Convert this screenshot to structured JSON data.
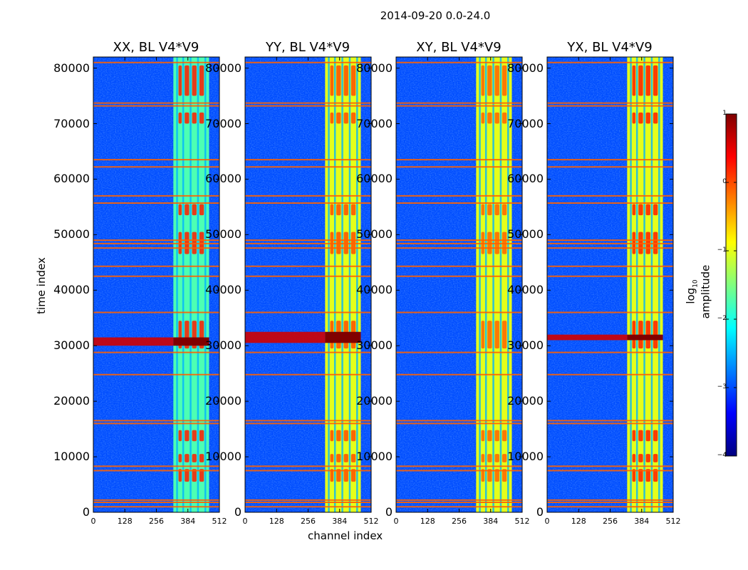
{
  "chart_data": {
    "type": "heatmap",
    "suptitle": "2014-09-20 0.0-24.0",
    "colormap": "jet",
    "colorbar": {
      "label_prefix": "log",
      "label_sub": "10",
      "label_suffix": " amplitude",
      "min": -4,
      "max": 1,
      "ticks": [
        1,
        0,
        -1,
        -2,
        -3,
        -4
      ],
      "tick_labels": [
        "1",
        "0",
        "−1",
        "−2",
        "−3",
        "−4"
      ]
    },
    "xlabel": "channel index",
    "ylabel": "time index",
    "xlim": [
      0,
      512
    ],
    "ylim": [
      0,
      82000
    ],
    "xticks": [
      0,
      128,
      256,
      384,
      512
    ],
    "xtick_labels": [
      "0",
      "128",
      "256",
      "384",
      "512"
    ],
    "yticks": [
      0,
      10000,
      20000,
      30000,
      40000,
      50000,
      60000,
      70000,
      80000
    ],
    "ytick_labels": [
      "0",
      "10000",
      "20000",
      "30000",
      "40000",
      "50000",
      "60000",
      "70000",
      "80000"
    ],
    "panels": [
      {
        "title": "XX, BL V4*V9",
        "band_level": 0.45,
        "hot_level": 0.85,
        "bright_stripe": [
          30000,
          31500
        ]
      },
      {
        "title": "YY, BL V4*V9",
        "band_level": 0.6,
        "hot_level": 0.8,
        "bright_stripe": [
          30500,
          32500
        ]
      },
      {
        "title": "XY, BL V4*V9",
        "band_level": 0.6,
        "hot_level": 0.78,
        "bright_stripe": null
      },
      {
        "title": "YX, BL V4*V9",
        "band_level": 0.6,
        "hot_level": 0.85,
        "bright_stripe": [
          31000,
          32000
        ]
      }
    ],
    "features": {
      "band_channels": [
        325,
        470
      ],
      "sub_band_edges": [
        340,
        365,
        395,
        425,
        455
      ],
      "orange_time_lines": [
        1000,
        1800,
        2200,
        7500,
        8300,
        16000,
        16500,
        24800,
        28800,
        36000,
        42500,
        44300,
        47600,
        48400,
        49000,
        55700,
        57000,
        62200,
        63500,
        73200,
        73700,
        81000
      ],
      "hot_time_ranges": [
        [
          5500,
          7800
        ],
        [
          9000,
          10500
        ],
        [
          12800,
          14800
        ],
        [
          29500,
          34500
        ],
        [
          46500,
          50500
        ],
        [
          53500,
          55500
        ],
        [
          70000,
          72000
        ],
        [
          75000,
          80500
        ]
      ]
    }
  }
}
